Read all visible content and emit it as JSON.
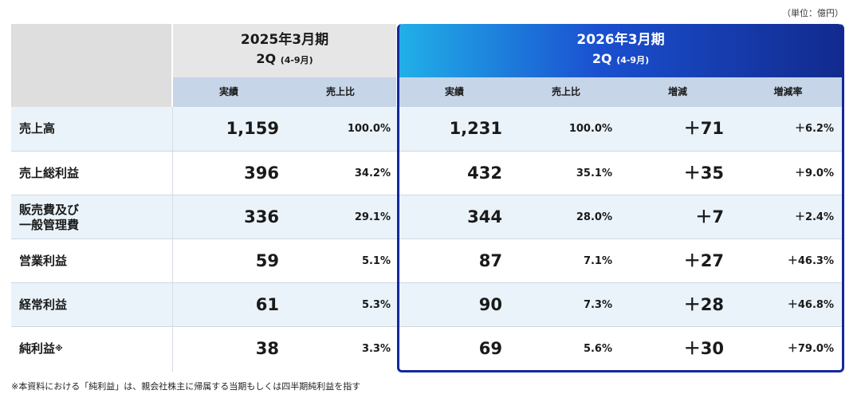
{
  "unit": "（単位：億円）",
  "prev": {
    "year": "2025年3月期",
    "period": "2Q",
    "range": "(4-9月)"
  },
  "cur": {
    "year": "2026年3月期",
    "period": "2Q",
    "range": "(4-9月)"
  },
  "subheaders": {
    "prev_actual": "実績",
    "prev_ratio": "売上比",
    "cur_actual": "実績",
    "cur_ratio": "売上比",
    "change": "増減",
    "change_rate": "増減率"
  },
  "rows": [
    {
      "label": "売上高",
      "prev_actual": "1,159",
      "prev_ratio": "100.0%",
      "cur_actual": "1,231",
      "cur_ratio": "100.0%",
      "change": "＋71",
      "change_rate": "＋6.2%"
    },
    {
      "label": "売上総利益",
      "prev_actual": "396",
      "prev_ratio": "34.2%",
      "cur_actual": "432",
      "cur_ratio": "35.1%",
      "change": "＋35",
      "change_rate": "＋9.0%"
    },
    {
      "label_line1": "販売費及び",
      "label_line2": "一般管理費",
      "prev_actual": "336",
      "prev_ratio": "29.1%",
      "cur_actual": "344",
      "cur_ratio": "28.0%",
      "change": "＋7",
      "change_rate": "＋2.4%"
    },
    {
      "label": "営業利益",
      "prev_actual": "59",
      "prev_ratio": "5.1%",
      "cur_actual": "87",
      "cur_ratio": "7.1%",
      "change": "＋27",
      "change_rate": "＋46.3%"
    },
    {
      "label": "経常利益",
      "prev_actual": "61",
      "prev_ratio": "5.3%",
      "cur_actual": "90",
      "cur_ratio": "7.3%",
      "change": "＋28",
      "change_rate": "＋46.8%"
    },
    {
      "label": "純利益",
      "label_mark": "※",
      "prev_actual": "38",
      "prev_ratio": "3.3%",
      "cur_actual": "69",
      "cur_ratio": "5.6%",
      "change": "＋30",
      "change_rate": "＋79.0%"
    }
  ],
  "footnote": "※本資料における「純利益」は、親会社株主に帰属する当期もしくは四半期純利益を指す",
  "colors": {
    "current_accent": "#13289a",
    "subheader_bg": "#c6d5e8",
    "row_shade": "#eaf3f9"
  }
}
